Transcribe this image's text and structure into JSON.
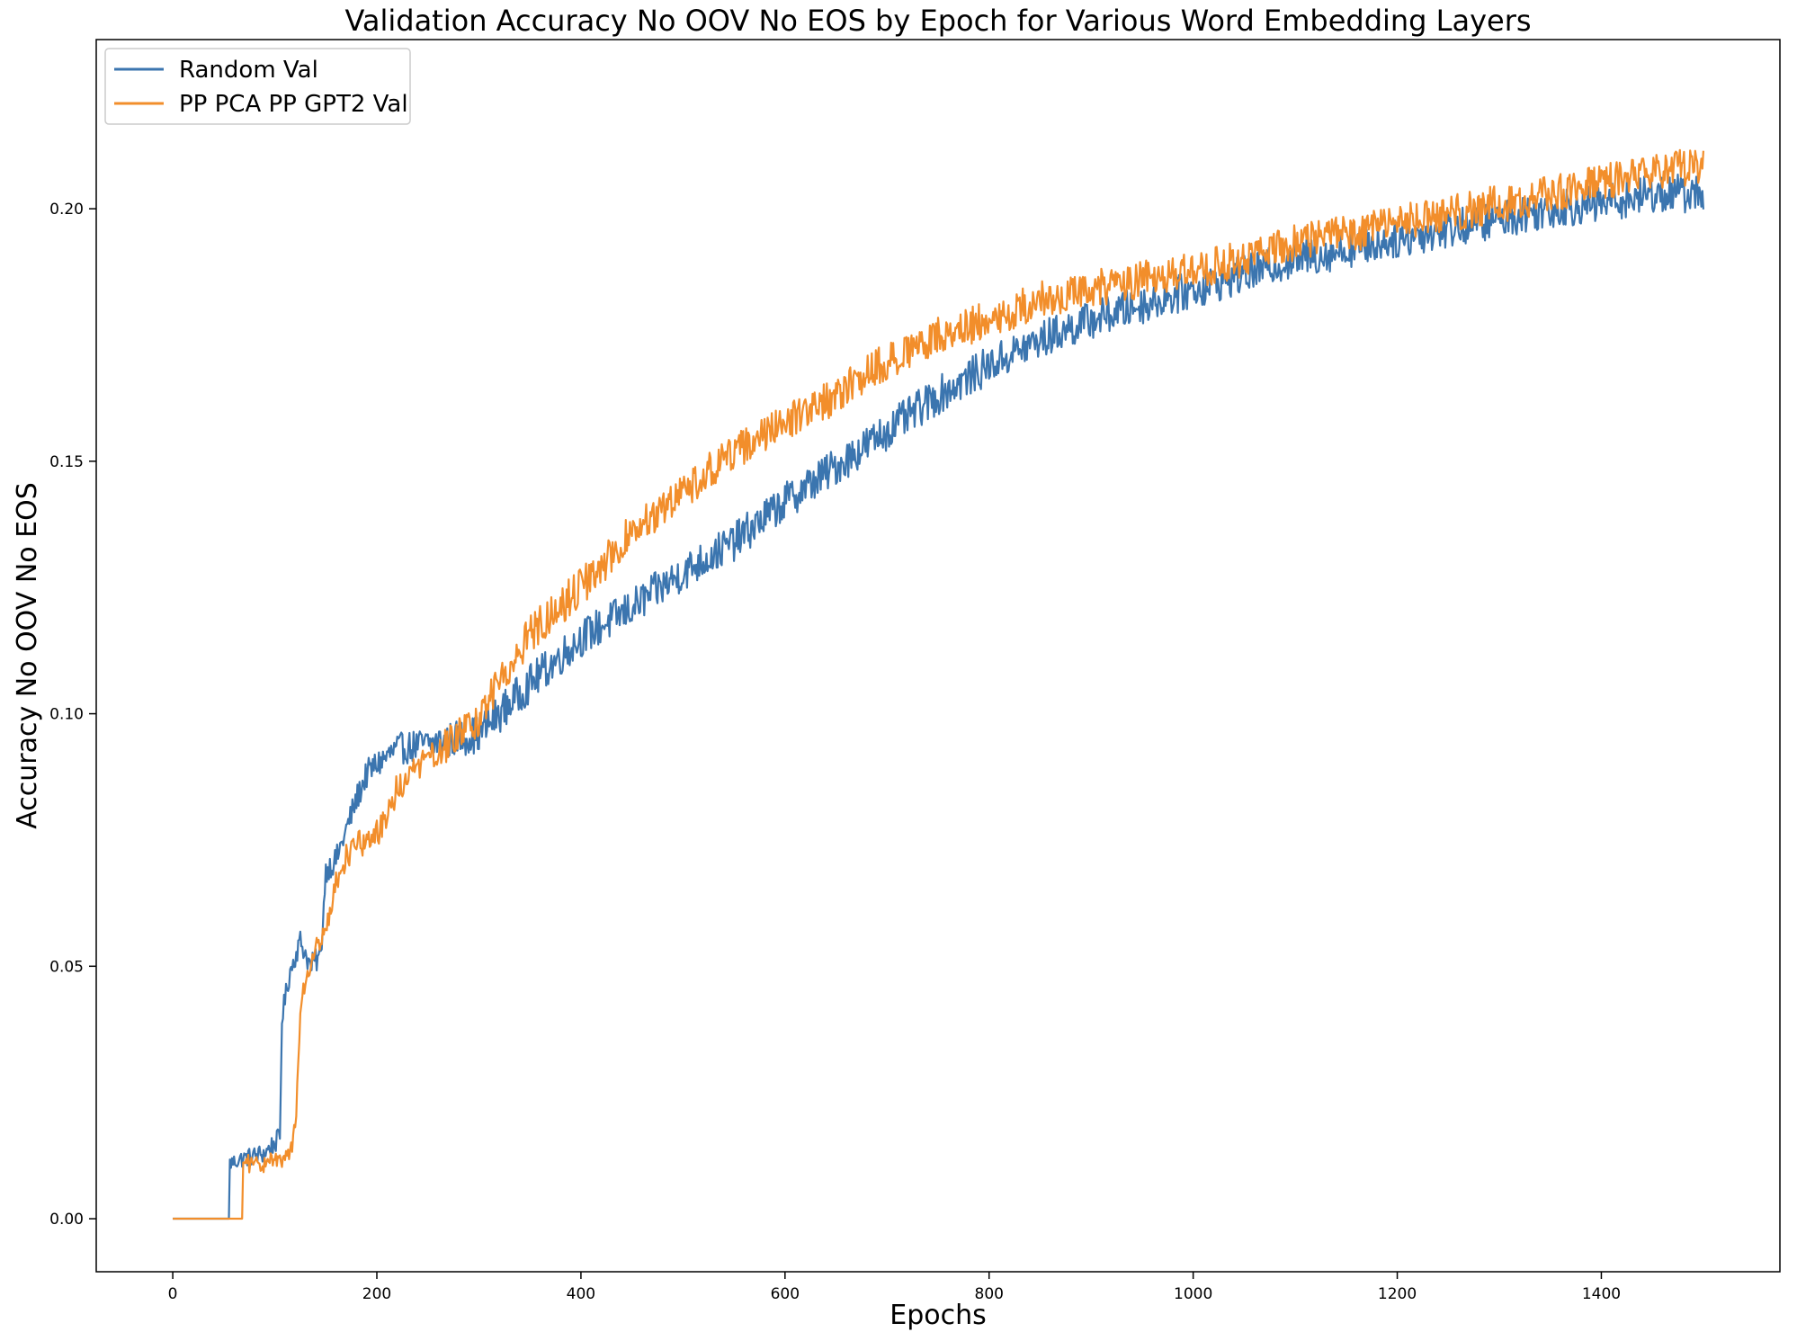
{
  "chart_data": {
    "type": "line",
    "title": "Validation Accuracy No OOV No EOS by Epoch for Various Word Embedding Layers",
    "xlabel": "Epochs",
    "ylabel": "Accuracy No OOV No EOS",
    "xlim": [
      -75,
      1575
    ],
    "ylim": [
      -0.0105,
      0.2335
    ],
    "xticks": [
      0,
      200,
      400,
      600,
      800,
      1000,
      1200,
      1400
    ],
    "xtick_labels": [
      "0",
      "200",
      "400",
      "600",
      "800",
      "1000",
      "1200",
      "1400"
    ],
    "yticks": [
      0.0,
      0.05,
      0.1,
      0.15,
      0.2
    ],
    "ytick_labels": [
      "0.00",
      "0.05",
      "0.10",
      "0.15",
      "0.20"
    ],
    "grid": false,
    "legend_position": "upper-left",
    "series": [
      {
        "name": "Random Val",
        "color": "#3b75af",
        "x": [
          0,
          55,
          56,
          70,
          90,
          105,
          107,
          115,
          125,
          135,
          145,
          150,
          160,
          170,
          180,
          190,
          200,
          220,
          250,
          300,
          350,
          400,
          450,
          500,
          550,
          600,
          650,
          700,
          750,
          800,
          850,
          900,
          950,
          1000,
          1050,
          1100,
          1150,
          1200,
          1250,
          1300,
          1350,
          1400,
          1450,
          1500
        ],
        "y": [
          0.0,
          0.0,
          0.011,
          0.012,
          0.013,
          0.016,
          0.04,
          0.049,
          0.055,
          0.05,
          0.052,
          0.069,
          0.071,
          0.077,
          0.083,
          0.088,
          0.09,
          0.093,
          0.094,
          0.096,
          0.106,
          0.115,
          0.121,
          0.128,
          0.134,
          0.142,
          0.149,
          0.156,
          0.163,
          0.169,
          0.174,
          0.178,
          0.181,
          0.184,
          0.187,
          0.19,
          0.192,
          0.194,
          0.196,
          0.198,
          0.2,
          0.201,
          0.203,
          0.203
        ]
      },
      {
        "name": "PP PCA PP GPT2 Val",
        "color": "#f28e2b",
        "x": [
          0,
          68,
          69,
          85,
          105,
          115,
          120,
          125,
          130,
          140,
          150,
          160,
          170,
          180,
          200,
          220,
          250,
          300,
          350,
          400,
          450,
          500,
          550,
          600,
          650,
          700,
          750,
          800,
          850,
          900,
          950,
          1000,
          1050,
          1100,
          1150,
          1200,
          1250,
          1300,
          1350,
          1400,
          1450,
          1500
        ],
        "y": [
          0.0,
          0.0,
          0.011,
          0.011,
          0.011,
          0.013,
          0.018,
          0.04,
          0.048,
          0.053,
          0.056,
          0.066,
          0.072,
          0.074,
          0.076,
          0.085,
          0.091,
          0.099,
          0.116,
          0.125,
          0.136,
          0.144,
          0.152,
          0.158,
          0.163,
          0.17,
          0.175,
          0.178,
          0.182,
          0.184,
          0.186,
          0.188,
          0.19,
          0.193,
          0.195,
          0.197,
          0.199,
          0.201,
          0.203,
          0.205,
          0.207,
          0.209
        ]
      }
    ]
  }
}
